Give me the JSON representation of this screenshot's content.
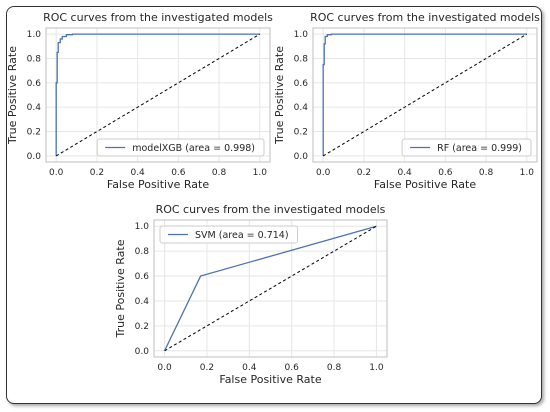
{
  "colors": {
    "curve": "#4c72b0",
    "diagonal": "#000000",
    "grid": "#e6e6e6",
    "axis": "#bfbfbf"
  },
  "chart_data": [
    {
      "type": "line",
      "title": "ROC curves from the investigated models",
      "xlabel": "False Positive Rate",
      "ylabel": "True Positive Rate",
      "xlim": [
        -0.05,
        1.05
      ],
      "ylim": [
        -0.05,
        1.05
      ],
      "xticks": [
        "0.0",
        "0.2",
        "0.4",
        "0.6",
        "0.8",
        "1.0"
      ],
      "yticks": [
        "0.0",
        "0.2",
        "0.4",
        "0.6",
        "0.8",
        "1.0"
      ],
      "grid": true,
      "legend_position": "lower-right",
      "series": [
        {
          "name": "modelXGB (area = 0.998)",
          "x": [
            0.0,
            0.0,
            0.005,
            0.005,
            0.01,
            0.01,
            0.02,
            0.02,
            0.03,
            0.03,
            0.05,
            0.05,
            0.08,
            0.08,
            1.0
          ],
          "y": [
            0.0,
            0.6,
            0.6,
            0.85,
            0.85,
            0.93,
            0.93,
            0.96,
            0.96,
            0.98,
            0.98,
            0.995,
            0.995,
            1.0,
            1.0
          ]
        },
        {
          "name": "chance",
          "x": [
            0.0,
            1.0
          ],
          "y": [
            0.0,
            1.0
          ],
          "dashed": true
        }
      ]
    },
    {
      "type": "line",
      "title": "ROC curves from the investigated models",
      "xlabel": "False Positive Rate",
      "ylabel": "True Positive Rate",
      "xlim": [
        -0.05,
        1.05
      ],
      "ylim": [
        -0.05,
        1.05
      ],
      "xticks": [
        "0.0",
        "0.2",
        "0.4",
        "0.6",
        "0.8",
        "1.0"
      ],
      "yticks": [
        "0.0",
        "0.2",
        "0.4",
        "0.6",
        "0.8",
        "1.0"
      ],
      "grid": true,
      "legend_position": "lower-right",
      "series": [
        {
          "name": "RF (area = 0.999)",
          "x": [
            0.0,
            0.0,
            0.005,
            0.005,
            0.01,
            0.01,
            0.02,
            0.02,
            0.04,
            0.04,
            1.0
          ],
          "y": [
            0.0,
            0.75,
            0.75,
            0.92,
            0.92,
            0.98,
            0.98,
            0.995,
            0.995,
            1.0,
            1.0
          ]
        },
        {
          "name": "chance",
          "x": [
            0.0,
            1.0
          ],
          "y": [
            0.0,
            1.0
          ],
          "dashed": true
        }
      ]
    },
    {
      "type": "line",
      "title": "ROC curves from the investigated models",
      "xlabel": "False Positive Rate",
      "ylabel": "True Positive Rate",
      "xlim": [
        -0.05,
        1.05
      ],
      "ylim": [
        -0.05,
        1.05
      ],
      "xticks": [
        "0.0",
        "0.2",
        "0.4",
        "0.6",
        "0.8",
        "1.0"
      ],
      "yticks": [
        "0.0",
        "0.2",
        "0.4",
        "0.6",
        "0.8",
        "1.0"
      ],
      "grid": true,
      "legend_position": "upper-left",
      "series": [
        {
          "name": "SVM (area = 0.714)",
          "x": [
            0.0,
            0.17,
            1.0
          ],
          "y": [
            0.0,
            0.6,
            1.0
          ]
        },
        {
          "name": "chance",
          "x": [
            0.0,
            1.0
          ],
          "y": [
            0.0,
            1.0
          ],
          "dashed": true
        }
      ]
    }
  ]
}
